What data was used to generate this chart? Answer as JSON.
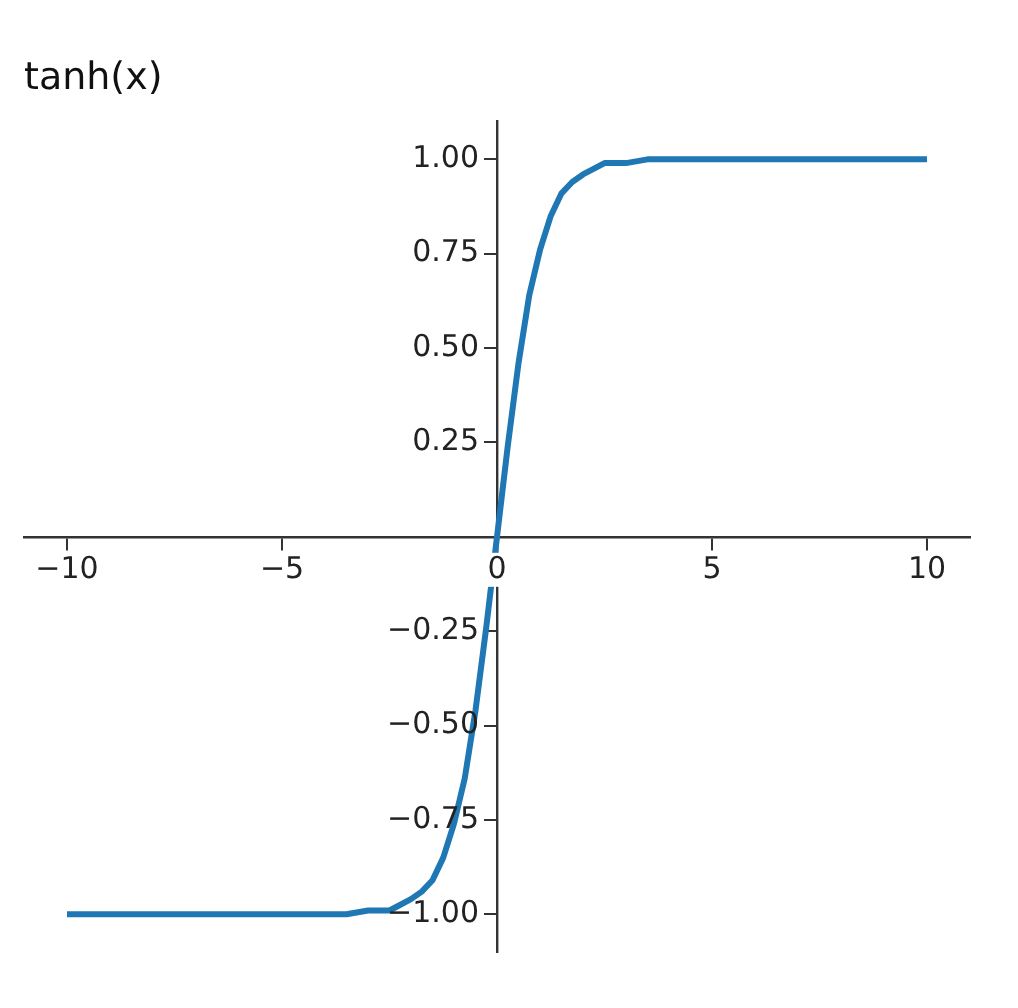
{
  "chart_data": {
    "type": "line",
    "title": "tanh(x)",
    "x": [
      -10,
      -6,
      -4,
      -3.5,
      -3,
      -2.5,
      -2,
      -1.75,
      -1.5,
      -1.25,
      -1,
      -0.75,
      -0.5,
      -0.25,
      0,
      0.25,
      0.5,
      0.75,
      1,
      1.25,
      1.5,
      1.75,
      2,
      2.5,
      3,
      3.5,
      4,
      6,
      10
    ],
    "series": [
      {
        "color": "#1f77b4",
        "values": [
          -1,
          -1,
          -1,
          -1,
          -0.99,
          -0.99,
          -0.96,
          -0.94,
          -0.91,
          -0.85,
          -0.76,
          -0.64,
          -0.46,
          -0.24,
          0,
          0.24,
          0.46,
          0.64,
          0.76,
          0.85,
          0.91,
          0.94,
          0.96,
          0.99,
          0.99,
          1,
          1,
          1,
          1
        ]
      }
    ],
    "xlim": [
      -11,
      11
    ],
    "ylim": [
      -1.1,
      1.1
    ],
    "xticks": [
      {
        "value": -10,
        "label": "−10"
      },
      {
        "value": -5,
        "label": "−5"
      },
      0,
      5,
      10
    ],
    "yticks": [
      {
        "value": -1,
        "label": "−1.00"
      },
      {
        "value": -0.75,
        "label": "−0.75"
      },
      {
        "value": -0.5,
        "label": "−0.50"
      },
      {
        "value": -0.25,
        "label": "−0.25"
      },
      {
        "value": 0.25,
        "label": "0.25"
      },
      {
        "value": 0.5,
        "label": "0.50"
      },
      {
        "value": 0.75,
        "label": "0.75"
      },
      {
        "value": 1,
        "label": "1.00"
      }
    ],
    "grid": false,
    "legend": false,
    "marker": "none",
    "line_style": "solid"
  }
}
